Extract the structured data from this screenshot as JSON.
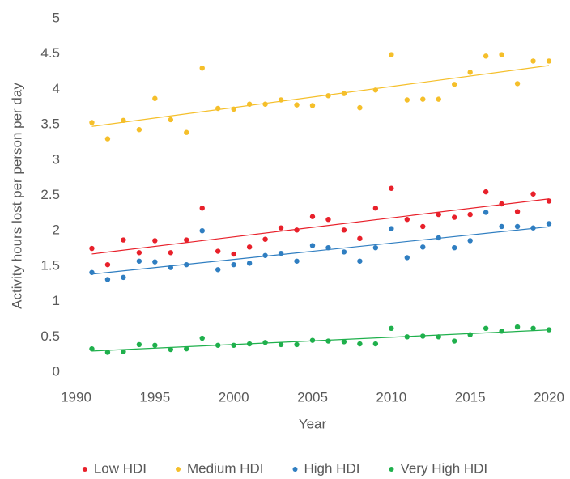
{
  "chart_data": {
    "type": "scatter",
    "x_label": "Year",
    "y_label": "Activity hours lost per person per day",
    "x": [
      1991,
      1992,
      1993,
      1994,
      1995,
      1996,
      1997,
      1998,
      1999,
      2000,
      2001,
      2002,
      2003,
      2004,
      2005,
      2006,
      2007,
      2008,
      2009,
      2010,
      2011,
      2012,
      2013,
      2014,
      2015,
      2016,
      2017,
      2018,
      2019,
      2020
    ],
    "series": [
      {
        "name": "Low HDI",
        "color": "#e8202a",
        "values": [
          1.75,
          1.52,
          1.87,
          1.69,
          1.86,
          1.69,
          1.87,
          2.32,
          1.71,
          1.67,
          1.77,
          1.88,
          2.04,
          2.01,
          2.2,
          2.16,
          2.01,
          1.89,
          2.32,
          2.6,
          2.16,
          2.06,
          2.23,
          2.19,
          2.23,
          2.55,
          2.38,
          2.27,
          2.52,
          2.42
        ]
      },
      {
        "name": "Medium HDI",
        "color": "#f5bf2a",
        "values": [
          3.53,
          3.3,
          3.56,
          3.43,
          3.87,
          3.57,
          3.39,
          4.3,
          3.73,
          3.72,
          3.79,
          3.79,
          3.85,
          3.78,
          3.77,
          3.91,
          3.94,
          3.74,
          3.99,
          4.49,
          3.85,
          3.86,
          3.86,
          4.07,
          4.24,
          4.47,
          4.49,
          4.08,
          4.4,
          4.4
        ]
      },
      {
        "name": "High HDI",
        "color": "#2f7ec1",
        "values": [
          1.41,
          1.31,
          1.34,
          1.57,
          1.56,
          1.48,
          1.52,
          2.0,
          1.45,
          1.52,
          1.54,
          1.65,
          1.68,
          1.57,
          1.79,
          1.76,
          1.7,
          1.57,
          1.76,
          2.03,
          1.62,
          1.77,
          1.9,
          1.76,
          1.86,
          2.26,
          2.06,
          2.06,
          2.04,
          2.1
        ]
      },
      {
        "name": "Very High HDI",
        "color": "#1fb04c",
        "values": [
          0.33,
          0.28,
          0.29,
          0.39,
          0.38,
          0.32,
          0.33,
          0.48,
          0.38,
          0.38,
          0.4,
          0.42,
          0.39,
          0.39,
          0.45,
          0.44,
          0.43,
          0.4,
          0.4,
          0.62,
          0.5,
          0.51,
          0.5,
          0.44,
          0.53,
          0.62,
          0.58,
          0.64,
          0.62,
          0.6
        ]
      }
    ],
    "xlim": [
      1990,
      2020
    ],
    "xticks": [
      1990,
      1995,
      2000,
      2005,
      2010,
      2015,
      2020
    ],
    "ylim": [
      0,
      5
    ],
    "yticks": [
      0,
      0.5,
      1,
      1.5,
      2,
      2.5,
      3,
      3.5,
      4,
      4.5,
      5
    ],
    "trendline": true,
    "grid": false,
    "legend": "bottom"
  }
}
